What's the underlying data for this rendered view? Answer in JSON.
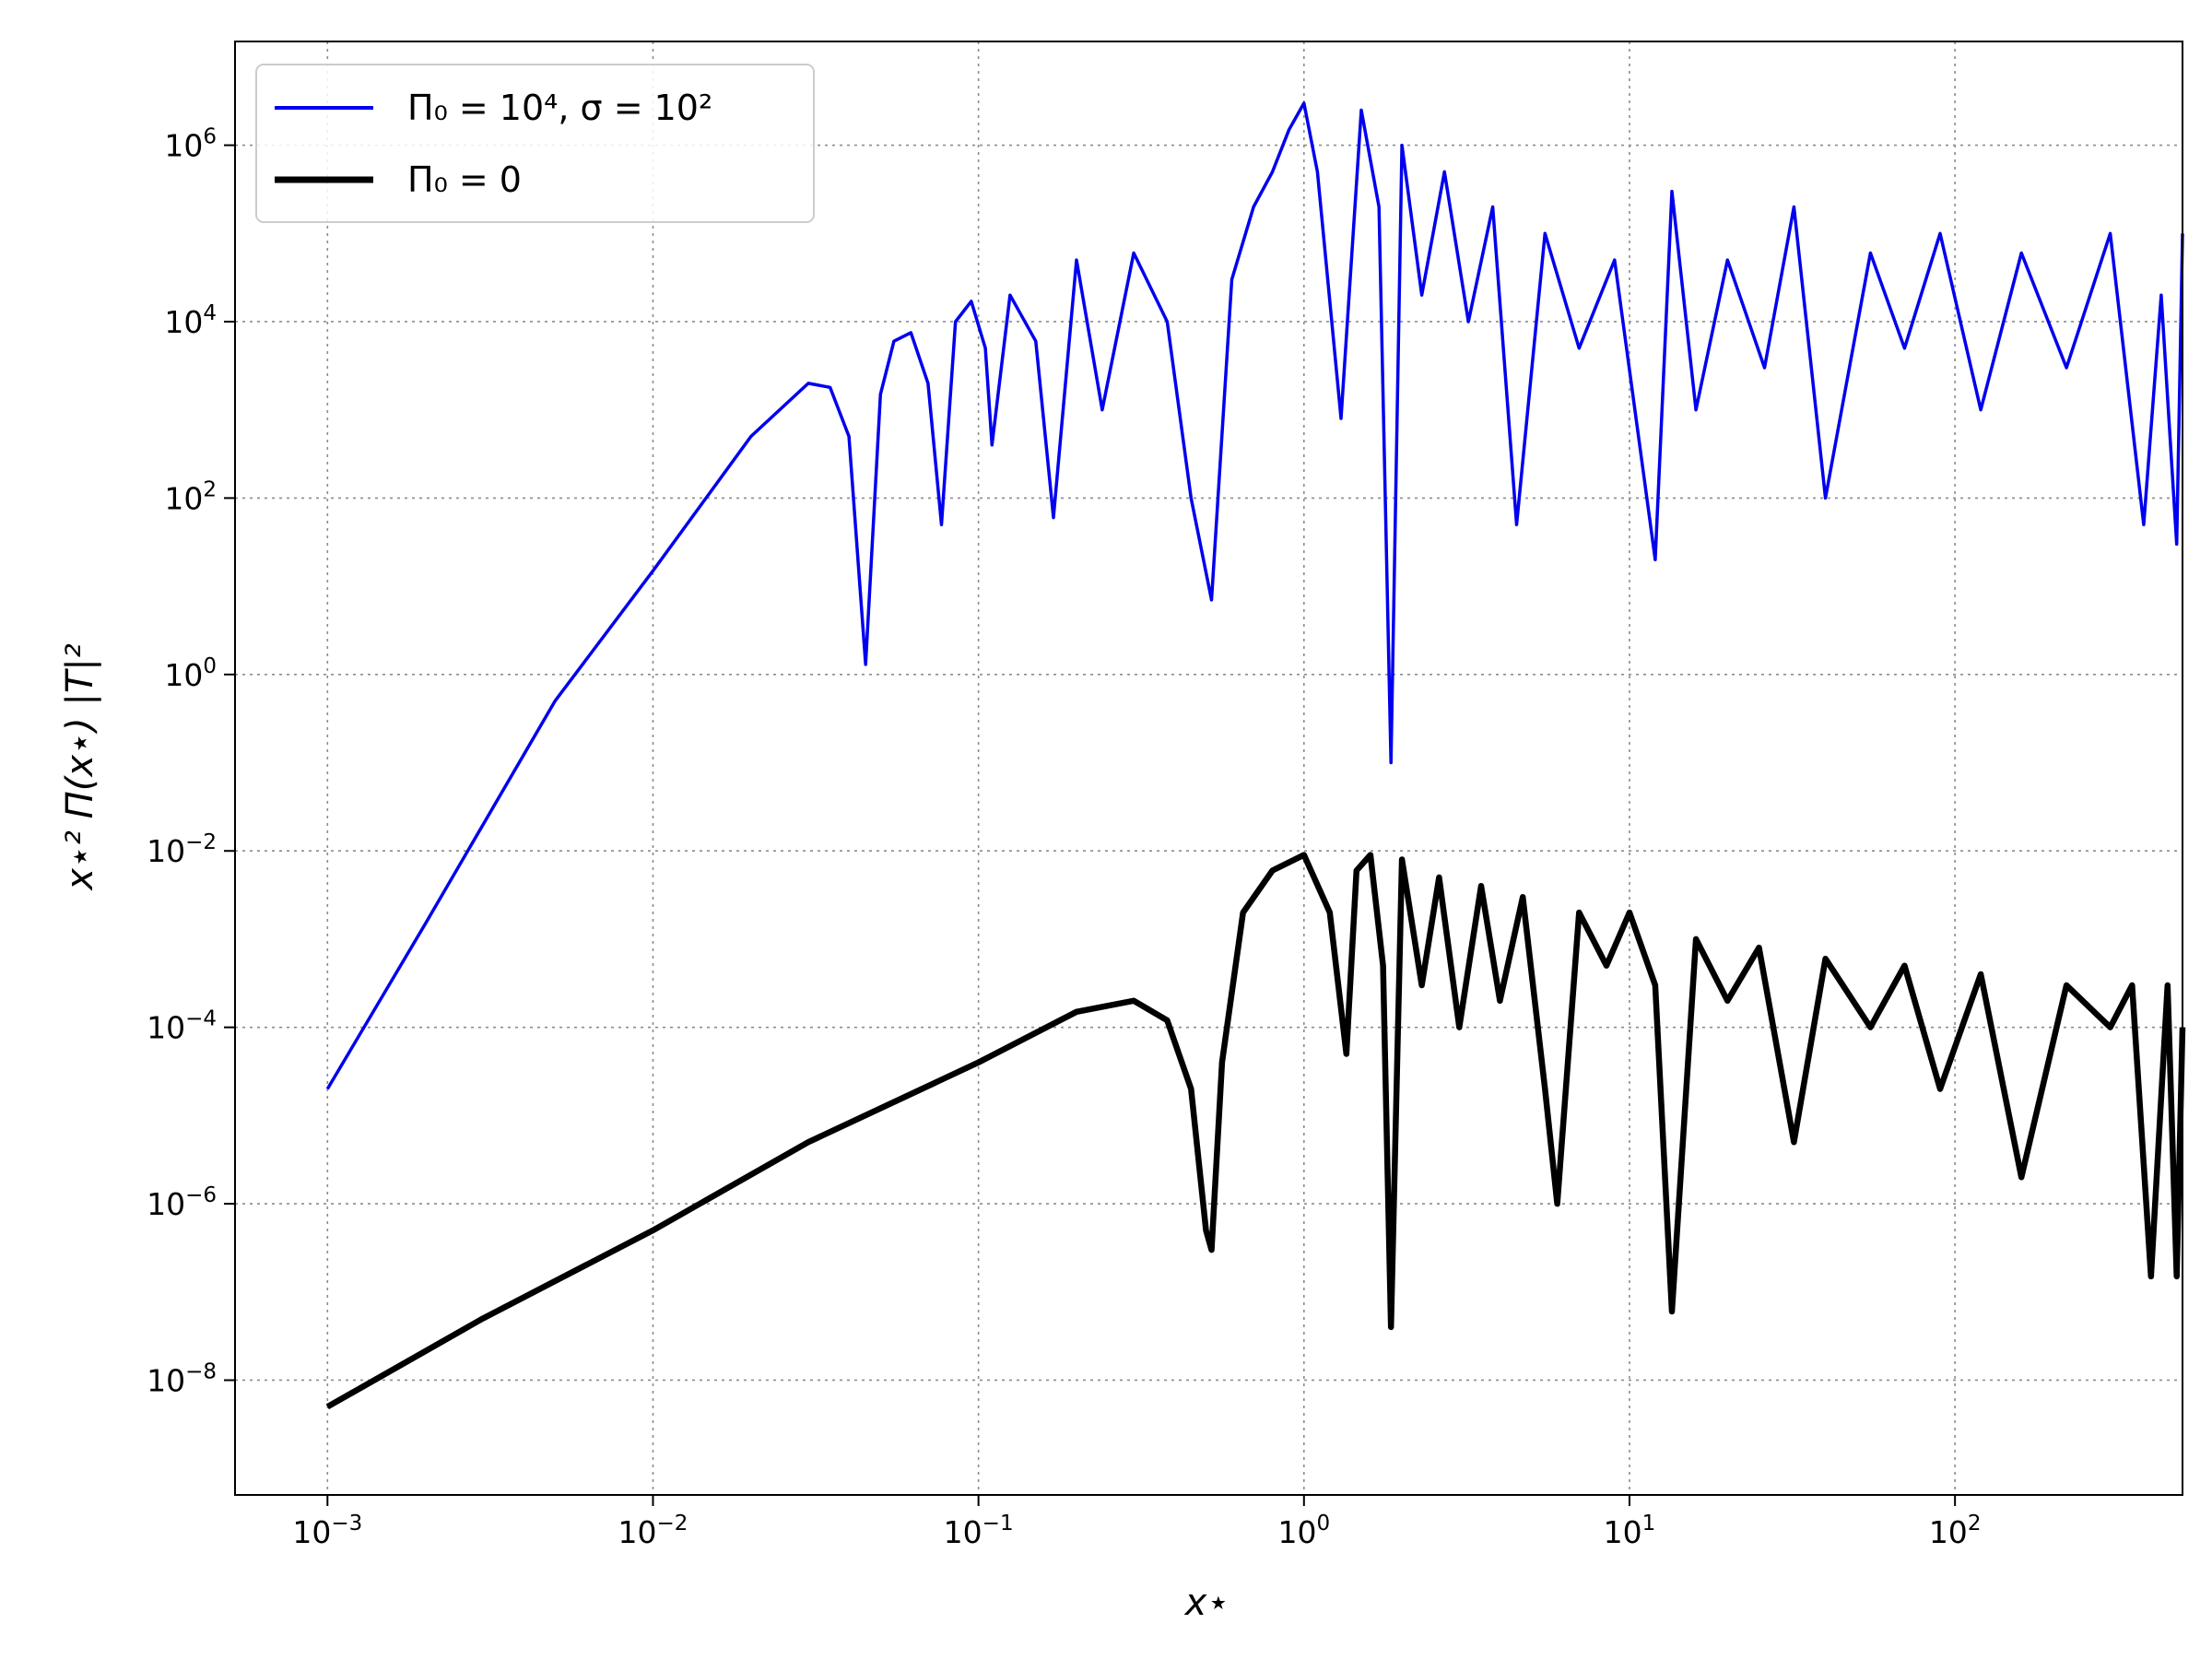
{
  "chart_data": {
    "type": "line",
    "title": "",
    "xlabel": "x⋆",
    "ylabel": "x⋆² Π(x⋆) |T|²",
    "xscale": "log",
    "yscale": "log",
    "xlim": [
      0.00052,
      500
    ],
    "ylim": [
      5e-10,
      15000000.0
    ],
    "xticks": [
      {
        "base": "10",
        "exp": "−3",
        "value": 0.001
      },
      {
        "base": "10",
        "exp": "−2",
        "value": 0.01
      },
      {
        "base": "10",
        "exp": "−1",
        "value": 0.1
      },
      {
        "base": "10",
        "exp": "0",
        "value": 1
      },
      {
        "base": "10",
        "exp": "1",
        "value": 10
      },
      {
        "base": "10",
        "exp": "2",
        "value": 100
      }
    ],
    "yticks": [
      {
        "base": "10",
        "exp": "−8",
        "value": 1e-08
      },
      {
        "base": "10",
        "exp": "−6",
        "value": 1e-06
      },
      {
        "base": "10",
        "exp": "−4",
        "value": 0.0001
      },
      {
        "base": "10",
        "exp": "−2",
        "value": 0.01
      },
      {
        "base": "10",
        "exp": "0",
        "value": 1
      },
      {
        "base": "10",
        "exp": "2",
        "value": 100
      },
      {
        "base": "10",
        "exp": "4",
        "value": 10000
      },
      {
        "base": "10",
        "exp": "6",
        "value": 1000000
      }
    ],
    "grid": true,
    "legend_position": "top-left",
    "series": [
      {
        "name": "Π₀ = 10⁴, σ = 10²",
        "color": "#0000ee",
        "x": [
          0.001,
          0.002,
          0.005,
          0.01,
          0.02,
          0.03,
          0.035,
          0.04,
          0.045,
          0.05,
          0.055,
          0.062,
          0.07,
          0.077,
          0.085,
          0.095,
          0.105,
          0.11,
          0.125,
          0.15,
          0.17,
          0.2,
          0.24,
          0.3,
          0.38,
          0.45,
          0.52,
          0.6,
          0.7,
          0.8,
          0.9,
          1.0,
          1.1,
          1.3,
          1.5,
          1.7,
          1.85,
          2.0,
          2.3,
          2.7,
          3.2,
          3.8,
          4.5,
          5.5,
          7.0,
          9.0,
          12.0,
          13.5,
          16.0,
          20.0,
          26.0,
          32.0,
          40.0,
          55.0,
          70.0,
          90.0,
          120.0,
          160.0,
          220.0,
          300.0,
          380.0,
          430.0,
          480.0,
          500.0
        ],
        "y": [
          2e-05,
          0.0015,
          0.5,
          15,
          500,
          2000,
          1800,
          500,
          1.3,
          1500,
          6000,
          7500,
          2000,
          50,
          10000,
          17000,
          5000,
          400,
          20000,
          6000,
          60,
          50000,
          1000,
          60000,
          10000,
          100,
          7,
          30000,
          200000,
          500000,
          1500000,
          3000000,
          500000,
          800,
          2500000,
          200000,
          0.1,
          1000000,
          20000,
          500000,
          10000,
          200000,
          50,
          100000,
          5000,
          50000,
          20,
          300000,
          1000,
          50000,
          3000,
          200000,
          100,
          60000,
          5000,
          100000,
          1000,
          60000,
          3000,
          100000,
          50,
          20000,
          30,
          100000
        ]
      },
      {
        "name": "Π₀ = 0",
        "color": "#000000",
        "x": [
          0.001,
          0.003,
          0.01,
          0.03,
          0.1,
          0.2,
          0.3,
          0.38,
          0.45,
          0.5,
          0.52,
          0.56,
          0.65,
          0.8,
          1.0,
          1.2,
          1.35,
          1.45,
          1.6,
          1.75,
          1.85,
          2.0,
          2.3,
          2.6,
          3.0,
          3.5,
          4.0,
          4.7,
          5.5,
          6.0,
          7.0,
          8.5,
          10.0,
          12.0,
          13.5,
          16.0,
          20.0,
          25.0,
          32.0,
          40.0,
          55.0,
          70.0,
          90.0,
          120.0,
          160.0,
          220.0,
          300.0,
          350.0,
          400.0,
          450.0,
          480.0,
          500.0
        ],
        "y": [
          5e-09,
          5e-08,
          5e-07,
          5e-06,
          4e-05,
          0.00015,
          0.0002,
          0.00012,
          2e-05,
          5e-07,
          3e-07,
          4e-05,
          0.002,
          0.006,
          0.009,
          0.002,
          5e-05,
          0.006,
          0.009,
          0.0005,
          4e-08,
          0.008,
          0.0003,
          0.005,
          0.0001,
          0.004,
          0.0002,
          0.003,
          2e-05,
          1e-06,
          0.002,
          0.0005,
          0.002,
          0.0003,
          6e-08,
          0.001,
          0.0002,
          0.0008,
          5e-06,
          0.0006,
          0.0001,
          0.0005,
          2e-05,
          0.0004,
          2e-06,
          0.0003,
          0.0001,
          0.0003,
          1.5e-07,
          0.0003,
          1.5e-07,
          0.0001
        ]
      }
    ]
  }
}
